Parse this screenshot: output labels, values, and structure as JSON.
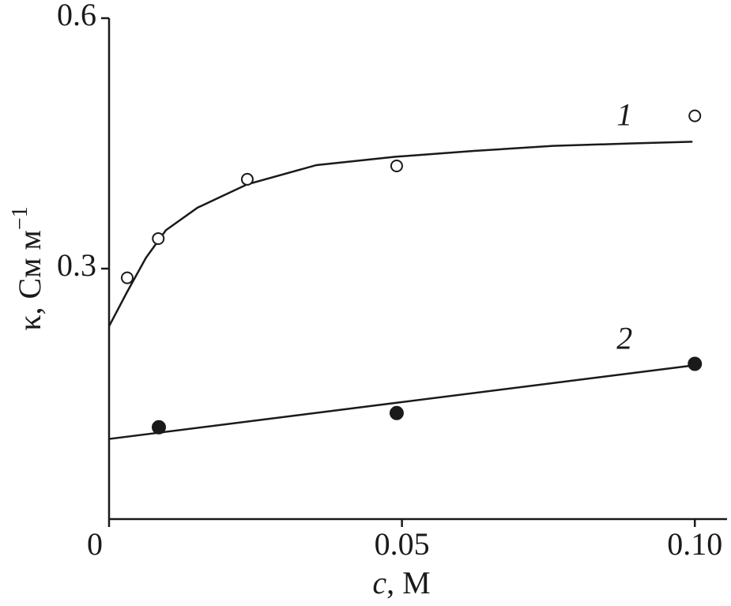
{
  "chart_data": {
    "type": "scatter",
    "xlabel_var": "c",
    "xlabel_unit": ", M",
    "ylabel": "κ, См м",
    "ylabel_exponent": "−1",
    "xlim": [
      0,
      0.1055
    ],
    "ylim": [
      0,
      0.6
    ],
    "xticks": [
      0,
      0.05,
      {
        "value": 0.1,
        "label": "0.10"
      }
    ],
    "yticks": [
      0.3,
      0.6
    ],
    "series": [
      {
        "name": "1",
        "color": "#1a1a1a",
        "marker": "open",
        "x": [
          0.0031,
          0.0084,
          0.0236,
          0.0491,
          0.1
        ],
        "values": [
          0.289,
          0.336,
          0.407,
          0.423,
          0.483
        ],
        "fit": {
          "x": [
            0,
            0.003,
            0.0063,
            0.0097,
            0.0151,
            0.0236,
            0.0354,
            0.0489,
            0.0623,
            0.0758,
            0.0893,
            0.0996
          ],
          "values": [
            0.231,
            0.271,
            0.313,
            0.346,
            0.373,
            0.401,
            0.424,
            0.434,
            0.441,
            0.447,
            0.45,
            0.452
          ]
        }
      },
      {
        "name": "2",
        "color": "#1a1a1a",
        "marker": "filled",
        "x": [
          0.0085,
          0.0491,
          0.1
        ],
        "values": [
          0.11,
          0.127,
          0.186
        ],
        "fit": {
          "x": [
            0,
            0.0996
          ],
          "values": [
            0.096,
            0.184
          ]
        }
      }
    ]
  }
}
